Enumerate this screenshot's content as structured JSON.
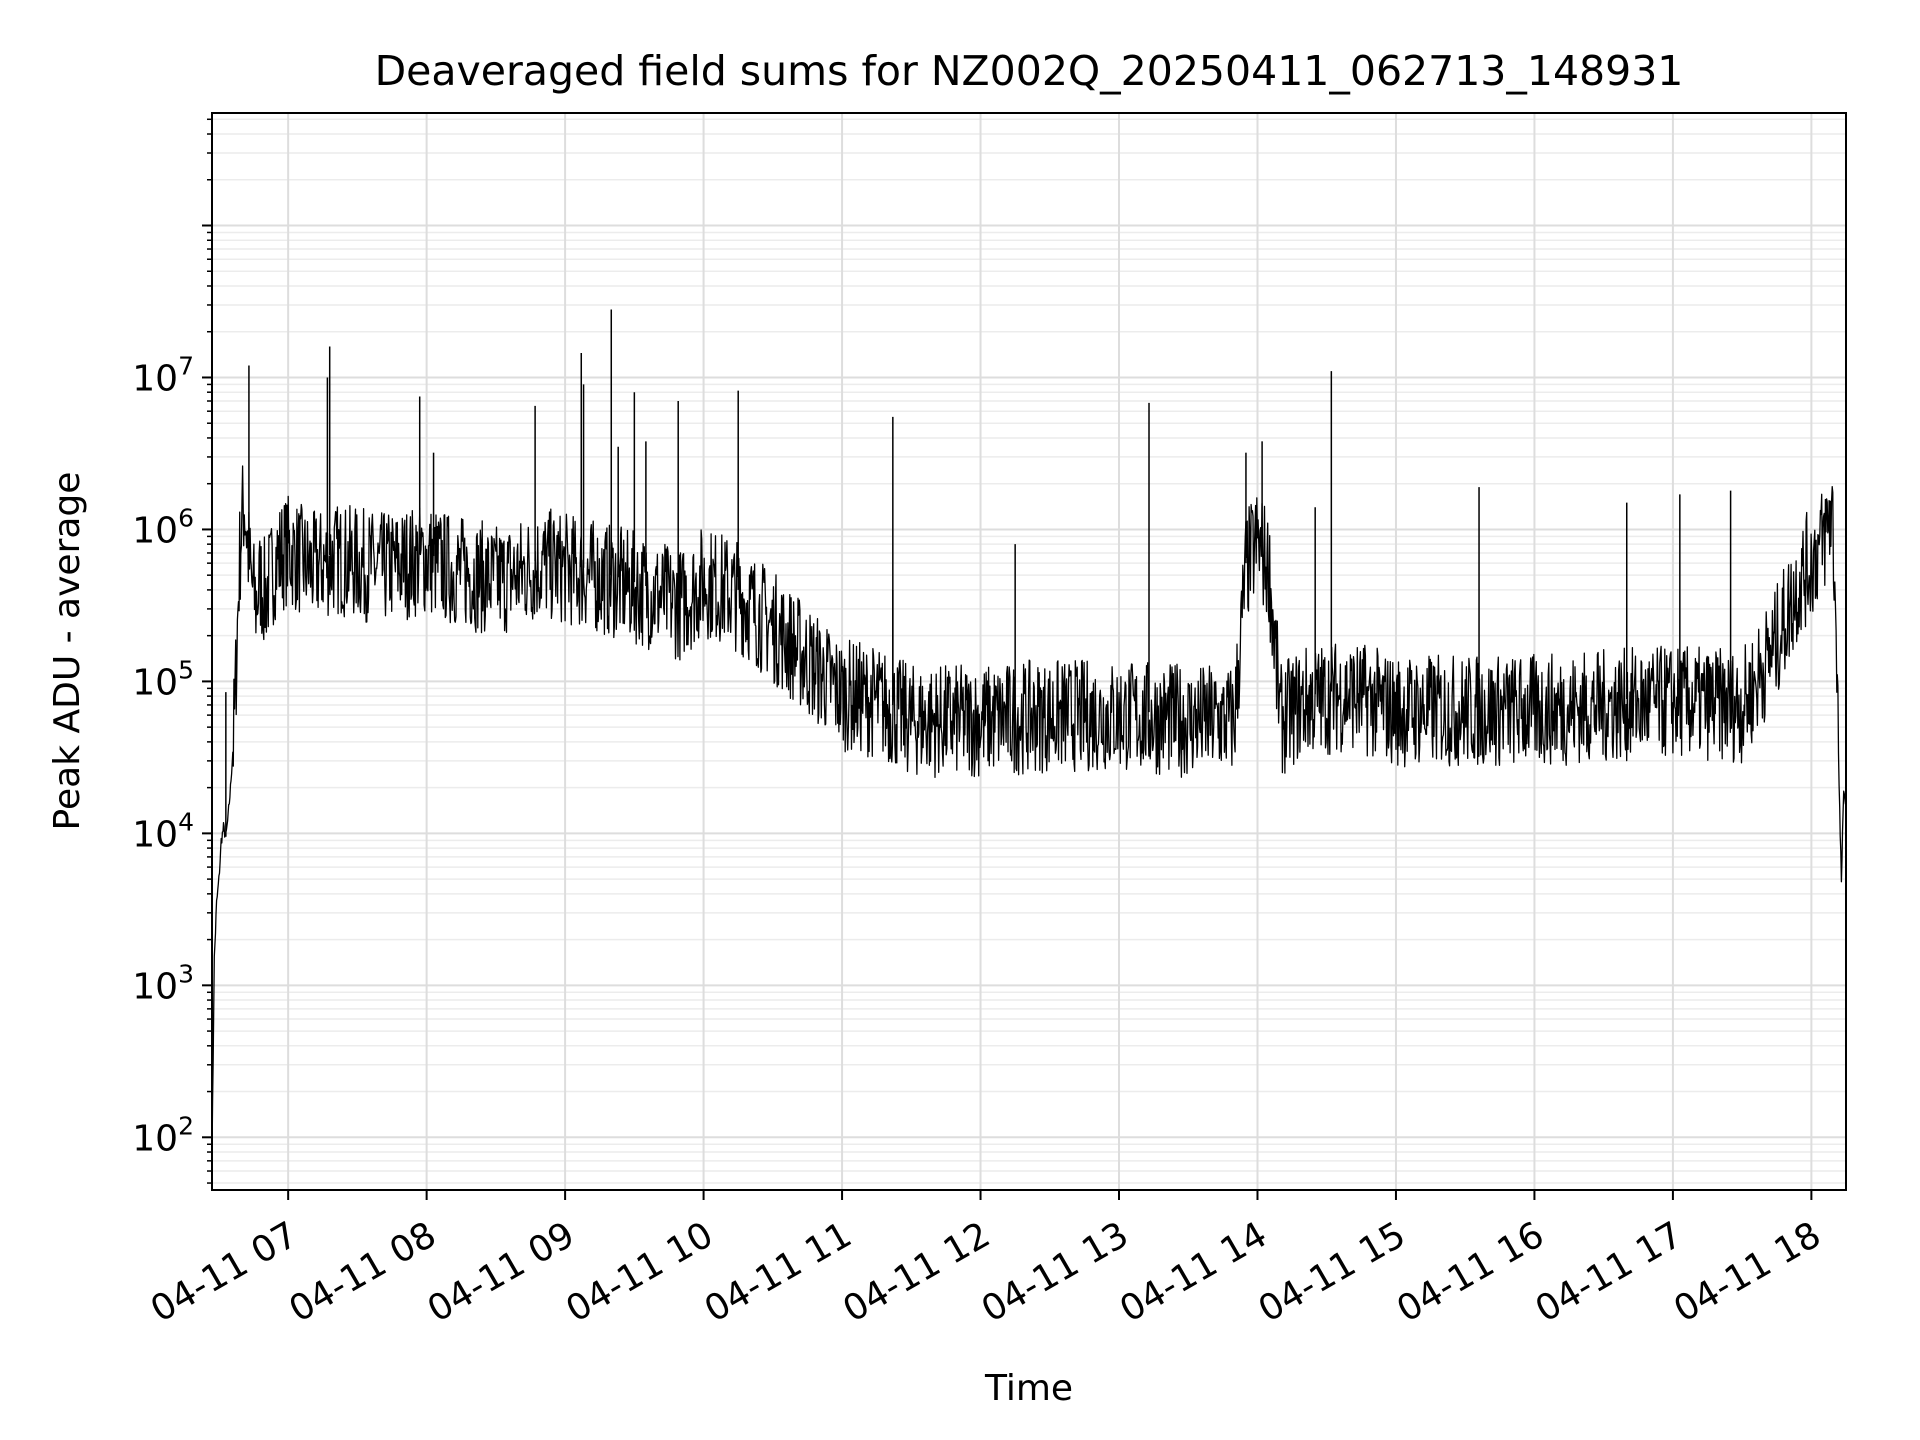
{
  "chart_data": {
    "type": "line",
    "title": "Deaveraged field sums for NZ002Q_20250411_062713_148931",
    "xlabel": "Time",
    "ylabel": "Peak ADU - average",
    "yscale": "log",
    "grid": true,
    "xlim": [
      "2025-04-11 06:27",
      "2025-04-11 18:15"
    ],
    "ylim": [
      45,
      550000000
    ],
    "x_ticks": [
      {
        "value": "2025-04-11 07:00",
        "label": "04-11 07"
      },
      {
        "value": "2025-04-11 08:00",
        "label": "04-11 08"
      },
      {
        "value": "2025-04-11 09:00",
        "label": "04-11 09"
      },
      {
        "value": "2025-04-11 10:00",
        "label": "04-11 10"
      },
      {
        "value": "2025-04-11 11:00",
        "label": "04-11 11"
      },
      {
        "value": "2025-04-11 12:00",
        "label": "04-11 12"
      },
      {
        "value": "2025-04-11 13:00",
        "label": "04-11 13"
      },
      {
        "value": "2025-04-11 14:00",
        "label": "04-11 14"
      },
      {
        "value": "2025-04-11 15:00",
        "label": "04-11 15"
      },
      {
        "value": "2025-04-11 16:00",
        "label": "04-11 16"
      },
      {
        "value": "2025-04-11 17:00",
        "label": "04-11 17"
      },
      {
        "value": "2025-04-11 18:00",
        "label": "04-11 18"
      }
    ],
    "y_ticks": [
      {
        "value": 100,
        "base": "10",
        "exp": "2"
      },
      {
        "value": 1000,
        "base": "10",
        "exp": "3"
      },
      {
        "value": 10000,
        "base": "10",
        "exp": "4"
      },
      {
        "value": 100000,
        "base": "10",
        "exp": "5"
      },
      {
        "value": 1000000,
        "base": "10",
        "exp": "6"
      },
      {
        "value": 10000000,
        "base": "10",
        "exp": "7"
      }
    ],
    "series": [
      {
        "color": "#000000",
        "points": [
          [
            "2025-04-11 06:27",
            80
          ],
          [
            "2025-04-11 06:28",
            1500
          ],
          [
            "2025-04-11 06:29",
            3500
          ],
          [
            "2025-04-11 06:30",
            5000
          ],
          [
            "2025-04-11 06:31",
            9000
          ],
          [
            "2025-04-11 06:32",
            11000
          ],
          [
            "2025-04-11 06:33",
            9500
          ],
          [
            "2025-04-11 06:34",
            13000
          ],
          [
            "2025-04-11 06:35",
            20000
          ],
          [
            "2025-04-11 06:36",
            35000
          ],
          [
            "2025-04-11 06:37",
            80000
          ],
          [
            "2025-04-11 06:38",
            250000
          ],
          [
            "2025-04-11 06:39",
            700000
          ],
          [
            "2025-04-11 06:40",
            1300000
          ],
          [
            "2025-04-11 06:41",
            1600000
          ],
          [
            "2025-04-11 06:42",
            1100000
          ],
          [
            "2025-04-11 06:43",
            700000
          ],
          [
            "2025-04-11 06:44",
            500000
          ],
          [
            "2025-04-11 06:46",
            350000
          ],
          [
            "2025-04-11 06:48",
            500000
          ],
          [
            "2025-04-11 06:50",
            400000
          ],
          [
            "2025-04-11 06:55",
            700000
          ],
          [
            "2025-04-11 07:00",
            800000
          ],
          [
            "2025-04-11 07:10",
            600000
          ],
          [
            "2025-04-11 07:20",
            700000
          ],
          [
            "2025-04-11 07:30",
            650000
          ],
          [
            "2025-04-11 07:40",
            600000
          ],
          [
            "2025-04-11 07:50",
            650000
          ],
          [
            "2025-04-11 08:00",
            700000
          ],
          [
            "2025-04-11 08:10",
            600000
          ],
          [
            "2025-04-11 08:20",
            550000
          ],
          [
            "2025-04-11 08:30",
            500000
          ],
          [
            "2025-04-11 08:40",
            550000
          ],
          [
            "2025-04-11 08:50",
            650000
          ],
          [
            "2025-04-11 09:00",
            600000
          ],
          [
            "2025-04-11 09:10",
            550000
          ],
          [
            "2025-04-11 09:20",
            500000
          ],
          [
            "2025-04-11 09:30",
            450000
          ],
          [
            "2025-04-11 09:40",
            400000
          ],
          [
            "2025-04-11 09:50",
            350000
          ],
          [
            "2025-04-11 10:00",
            500000
          ],
          [
            "2025-04-11 10:15",
            400000
          ],
          [
            "2025-04-11 10:30",
            250000
          ],
          [
            "2025-04-11 10:45",
            150000
          ],
          [
            "2025-04-11 11:00",
            90000
          ],
          [
            "2025-04-11 11:15",
            80000
          ],
          [
            "2025-04-11 11:30",
            60000
          ],
          [
            "2025-04-11 12:00",
            60000
          ],
          [
            "2025-04-11 12:30",
            65000
          ],
          [
            "2025-04-11 13:00",
            65000
          ],
          [
            "2025-04-11 13:30",
            60000
          ],
          [
            "2025-04-11 13:50",
            60000
          ],
          [
            "2025-04-11 13:52",
            150000
          ],
          [
            "2025-04-11 13:55",
            600000
          ],
          [
            "2025-04-11 14:00",
            900000
          ],
          [
            "2025-04-11 14:05",
            600000
          ],
          [
            "2025-04-11 14:08",
            150000
          ],
          [
            "2025-04-11 14:10",
            60000
          ],
          [
            "2025-04-11 14:20",
            80000
          ],
          [
            "2025-04-11 14:40",
            90000
          ],
          [
            "2025-04-11 15:00",
            70000
          ],
          [
            "2025-04-11 15:30",
            70000
          ],
          [
            "2025-04-11 16:00",
            70000
          ],
          [
            "2025-04-11 16:30",
            75000
          ],
          [
            "2025-04-11 17:00",
            80000
          ],
          [
            "2025-04-11 17:30",
            75000
          ],
          [
            "2025-04-11 17:35",
            100000
          ],
          [
            "2025-04-11 17:45",
            200000
          ],
          [
            "2025-04-11 17:55",
            500000
          ],
          [
            "2025-04-11 18:05",
            900000
          ],
          [
            "2025-04-11 18:09",
            1500000
          ],
          [
            "2025-04-11 18:11",
            200000
          ],
          [
            "2025-04-11 18:12",
            20000
          ],
          [
            "2025-04-11 18:13",
            5000
          ],
          [
            "2025-04-11 18:14",
            18000
          ],
          [
            "2025-04-11 18:15",
            17000
          ]
        ],
        "spikes": [
          [
            "2025-04-11 06:33",
            85000
          ],
          [
            "2025-04-11 06:43",
            12000000
          ],
          [
            "2025-04-11 07:17",
            10000000
          ],
          [
            "2025-04-11 07:18",
            16000000
          ],
          [
            "2025-04-11 07:57",
            7500000
          ],
          [
            "2025-04-11 08:03",
            3200000
          ],
          [
            "2025-04-11 08:47",
            6500000
          ],
          [
            "2025-04-11 09:07",
            14500000
          ],
          [
            "2025-04-11 09:08",
            9000000
          ],
          [
            "2025-04-11 09:20",
            28000000
          ],
          [
            "2025-04-11 09:23",
            3500000
          ],
          [
            "2025-04-11 09:30",
            8000000
          ],
          [
            "2025-04-11 09:35",
            3800000
          ],
          [
            "2025-04-11 09:49",
            7000000
          ],
          [
            "2025-04-11 10:15",
            8200000
          ],
          [
            "2025-04-11 11:22",
            5500000
          ],
          [
            "2025-04-11 11:22",
            400000
          ],
          [
            "2025-04-11 12:15",
            800000
          ],
          [
            "2025-04-11 13:13",
            6800000
          ],
          [
            "2025-04-11 13:55",
            3200000
          ],
          [
            "2025-04-11 14:02",
            3800000
          ],
          [
            "2025-04-11 14:25",
            1400000
          ],
          [
            "2025-04-11 14:32",
            11000000
          ],
          [
            "2025-04-11 15:36",
            1900000
          ],
          [
            "2025-04-11 16:40",
            1500000
          ],
          [
            "2025-04-11 17:03",
            1700000
          ],
          [
            "2025-04-11 17:25",
            1800000
          ]
        ]
      }
    ]
  }
}
